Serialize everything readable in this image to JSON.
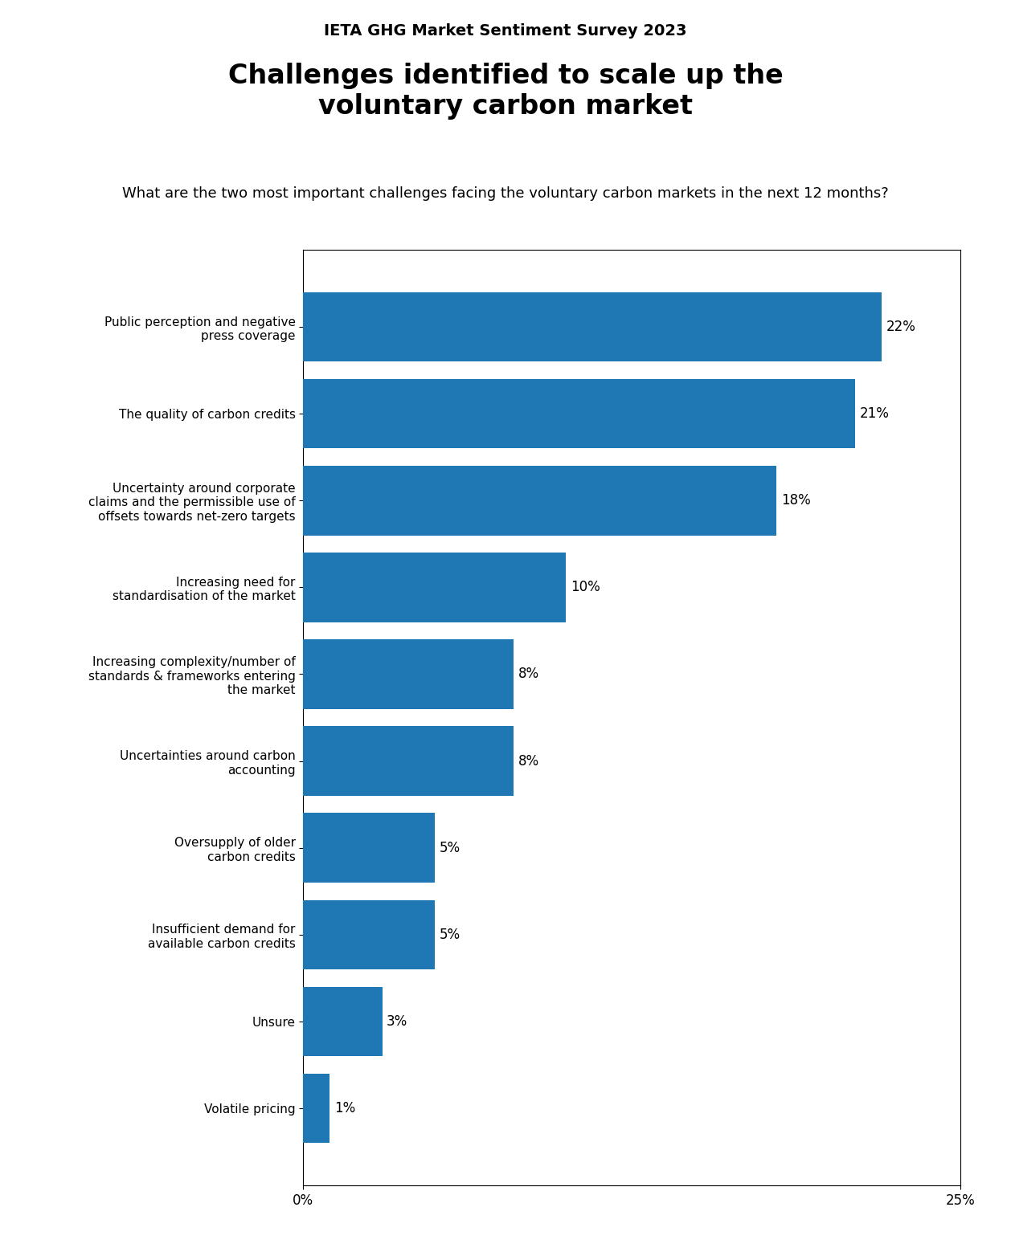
{
  "chart_data": {
    "type": "bar",
    "orientation": "horizontal",
    "subtitle": "IETA GHG Market Sentiment Survey 2023",
    "title": "Challenges identified to scale up the\nvoluntary carbon market",
    "annotations": [
      "What are the two most important challenges facing the voluntary carbon markets in the next 12 months?"
    ],
    "categories": [
      "Public perception and negative\npress coverage",
      "The quality of carbon credits",
      "Uncertainty around corporate\nclaims and the permissible use of\noffsets towards net-zero targets",
      "Increasing need for\nstandardisation of the market",
      "Increasing complexity/number of\nstandards & frameworks entering\nthe market",
      "Uncertainties around carbon\naccounting",
      "Oversupply of older\ncarbon credits",
      "Insufficient demand for\navailable carbon credits",
      "Unsure",
      "Volatile pricing"
    ],
    "values": [
      22,
      21,
      18,
      10,
      8,
      8,
      5,
      5,
      3,
      1
    ],
    "value_labels": [
      "22%",
      "21%",
      "18%",
      "10%",
      "8%",
      "8%",
      "5%",
      "5%",
      "3%",
      "1%"
    ],
    "data_labels": true,
    "xlim": [
      0,
      25
    ],
    "xticks": [
      {
        "value": 0,
        "label": "0%"
      },
      {
        "value": 25,
        "label": "25%"
      }
    ],
    "grid": false
  }
}
